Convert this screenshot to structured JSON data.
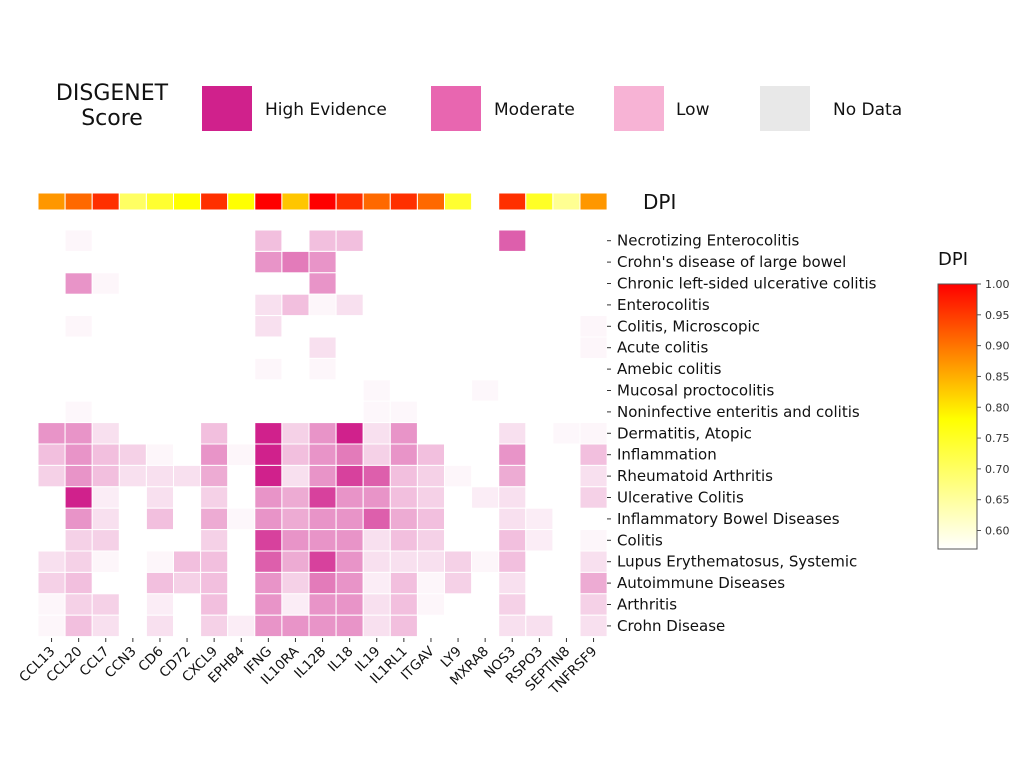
{
  "legend": {
    "title_line1": "DISGENET",
    "title_line2": "Score",
    "items": [
      {
        "label": "High Evidence",
        "color": "#d0218c"
      },
      {
        "label": "Moderate",
        "color": "#e866b0"
      },
      {
        "label": "Low",
        "color": "#f7b3d5"
      },
      {
        "label": "No Data",
        "color": "#e8e8e8"
      }
    ]
  },
  "chart_data": {
    "type": "heatmap",
    "dpi_row_label": "DPI",
    "colorbar": {
      "title": "DPI",
      "range": [
        0.57,
        1.0
      ],
      "ticks": [
        "1.00",
        "0.95",
        "0.90",
        "0.85",
        "0.80",
        "0.75",
        "0.70",
        "0.65",
        "0.60"
      ],
      "colors": [
        "#ffffff",
        "#ffff00",
        "#ff0000"
      ]
    },
    "genes": [
      "CCL13",
      "CCL20",
      "CCL7",
      "CCN3",
      "CD6",
      "CD72",
      "CXCL9",
      "EPHB4",
      "IFNG",
      "IL10RA",
      "IL12B",
      "IL18",
      "IL19",
      "IL1RL1",
      "ITGAV",
      "LY9",
      "MXRA8",
      "NOS3",
      "RSPO3",
      "SEPTIN8",
      "TNFRSF9"
    ],
    "dpi": [
      0.87,
      0.91,
      0.96,
      0.7,
      0.74,
      0.78,
      0.96,
      0.78,
      1.0,
      0.83,
      1.0,
      0.96,
      0.91,
      0.96,
      0.91,
      0.74,
      null,
      0.96,
      0.75,
      0.66,
      0.87
    ],
    "diseases": [
      "Necrotizing Enterocolitis",
      "Crohn's disease of large bowel",
      "Chronic left-sided ulcerative colitis",
      "Enterocolitis",
      "Colitis, Microscopic",
      "Acute colitis",
      "Amebic colitis",
      "Mucosal proctocolitis",
      "Noninfective enteritis and colitis",
      "Dermatitis, Atopic",
      "Inflammation",
      "Rheumatoid Arthritis",
      "Ulcerative Colitis",
      "Inflammatory Bowel Diseases",
      "Colitis",
      "Lupus Erythematosus, Systemic",
      "Autoimmune Diseases",
      "Arthritis",
      "Crohn Disease"
    ],
    "score_scale": "relative intensity 0-6 (0 = no association shown)",
    "scores": [
      [
        0,
        1,
        0,
        0,
        0,
        0,
        0,
        0,
        3,
        0,
        3,
        3,
        0,
        0,
        0,
        0,
        0,
        5,
        0,
        0,
        0
      ],
      [
        0,
        0,
        0,
        0,
        0,
        0,
        0,
        0,
        4,
        4.5,
        4,
        0,
        0,
        0,
        0,
        0,
        0,
        0,
        0,
        0,
        0
      ],
      [
        0,
        4,
        1,
        0,
        0,
        0,
        0,
        0,
        0,
        0,
        4,
        0,
        0,
        0,
        0,
        0,
        0,
        0,
        0,
        0,
        0
      ],
      [
        0,
        0,
        0,
        0,
        0,
        0,
        0,
        0,
        2,
        3,
        1,
        2,
        0,
        0,
        0,
        0,
        0,
        0,
        0,
        0,
        0
      ],
      [
        0,
        1,
        0,
        0,
        0,
        0,
        0,
        0,
        2,
        0,
        0,
        0,
        0,
        0,
        0,
        0,
        0,
        0,
        0,
        0,
        1
      ],
      [
        0,
        0,
        0,
        0,
        0,
        0,
        0,
        0,
        0,
        0,
        2,
        0,
        0,
        0,
        0,
        0,
        0,
        0,
        0,
        0,
        1
      ],
      [
        0,
        0,
        0,
        0,
        0,
        0,
        0,
        0,
        1,
        0,
        1,
        0,
        0,
        0,
        0,
        0,
        0,
        0,
        0,
        0,
        0
      ],
      [
        0,
        0,
        0,
        0,
        0,
        0,
        0,
        0,
        0,
        0,
        0,
        0,
        0.5,
        0,
        0,
        0,
        0.5,
        0,
        0,
        0,
        0
      ],
      [
        0,
        0.5,
        0,
        0,
        0,
        0,
        0,
        0,
        0,
        0,
        0,
        0,
        0.5,
        0.5,
        0,
        0,
        0,
        0,
        0,
        0,
        0
      ],
      [
        4,
        4,
        2,
        0,
        0,
        0,
        3,
        0,
        6,
        2.5,
        4,
        6,
        2,
        4,
        0,
        0,
        0,
        2,
        0,
        0.5,
        1
      ],
      [
        3,
        4,
        3,
        2.5,
        1,
        0,
        4,
        1,
        6,
        3,
        4,
        4.5,
        2.5,
        4,
        3,
        0,
        0,
        4,
        0,
        0,
        3
      ],
      [
        2.5,
        4,
        3,
        2,
        2,
        2,
        3.5,
        0,
        6,
        2,
        4,
        5.5,
        5,
        3,
        2.5,
        1,
        0,
        3.5,
        0,
        0,
        2
      ],
      [
        0,
        6,
        1.5,
        0,
        2,
        0,
        2.5,
        0,
        4,
        3.5,
        5.5,
        4,
        4,
        3,
        2.5,
        0,
        1.5,
        2,
        0,
        0,
        2.5
      ],
      [
        0,
        4,
        2,
        0,
        3,
        0,
        3.5,
        0.5,
        4,
        3.5,
        4,
        4,
        5,
        3.5,
        3,
        0,
        0,
        2,
        1.5,
        0,
        0
      ],
      [
        0,
        2.5,
        2.5,
        0,
        0,
        0,
        2.5,
        0,
        5.5,
        4,
        4,
        4,
        2,
        3,
        2.5,
        0,
        0,
        3,
        1.5,
        0,
        1
      ],
      [
        2,
        2.5,
        1,
        0,
        1,
        3,
        3,
        0,
        5,
        3.5,
        5.5,
        4,
        2,
        2,
        2,
        2.5,
        1,
        3,
        0,
        0,
        2
      ],
      [
        2.5,
        3,
        0,
        0,
        3,
        2.5,
        3,
        0,
        4,
        2.5,
        4.5,
        4,
        1.5,
        3,
        1,
        2.5,
        0,
        2,
        0,
        0,
        3.5
      ],
      [
        1,
        2.5,
        2.5,
        0,
        1.5,
        0,
        3,
        0,
        4,
        1.5,
        4,
        4,
        2,
        3,
        1,
        0,
        0,
        2.5,
        0,
        0,
        2.5
      ],
      [
        1,
        3,
        2,
        0,
        2,
        0,
        2.5,
        1.5,
        4,
        4,
        4,
        4,
        2,
        3,
        0,
        0,
        0,
        2,
        2,
        0,
        2
      ]
    ],
    "max_color": "#d0218c"
  }
}
